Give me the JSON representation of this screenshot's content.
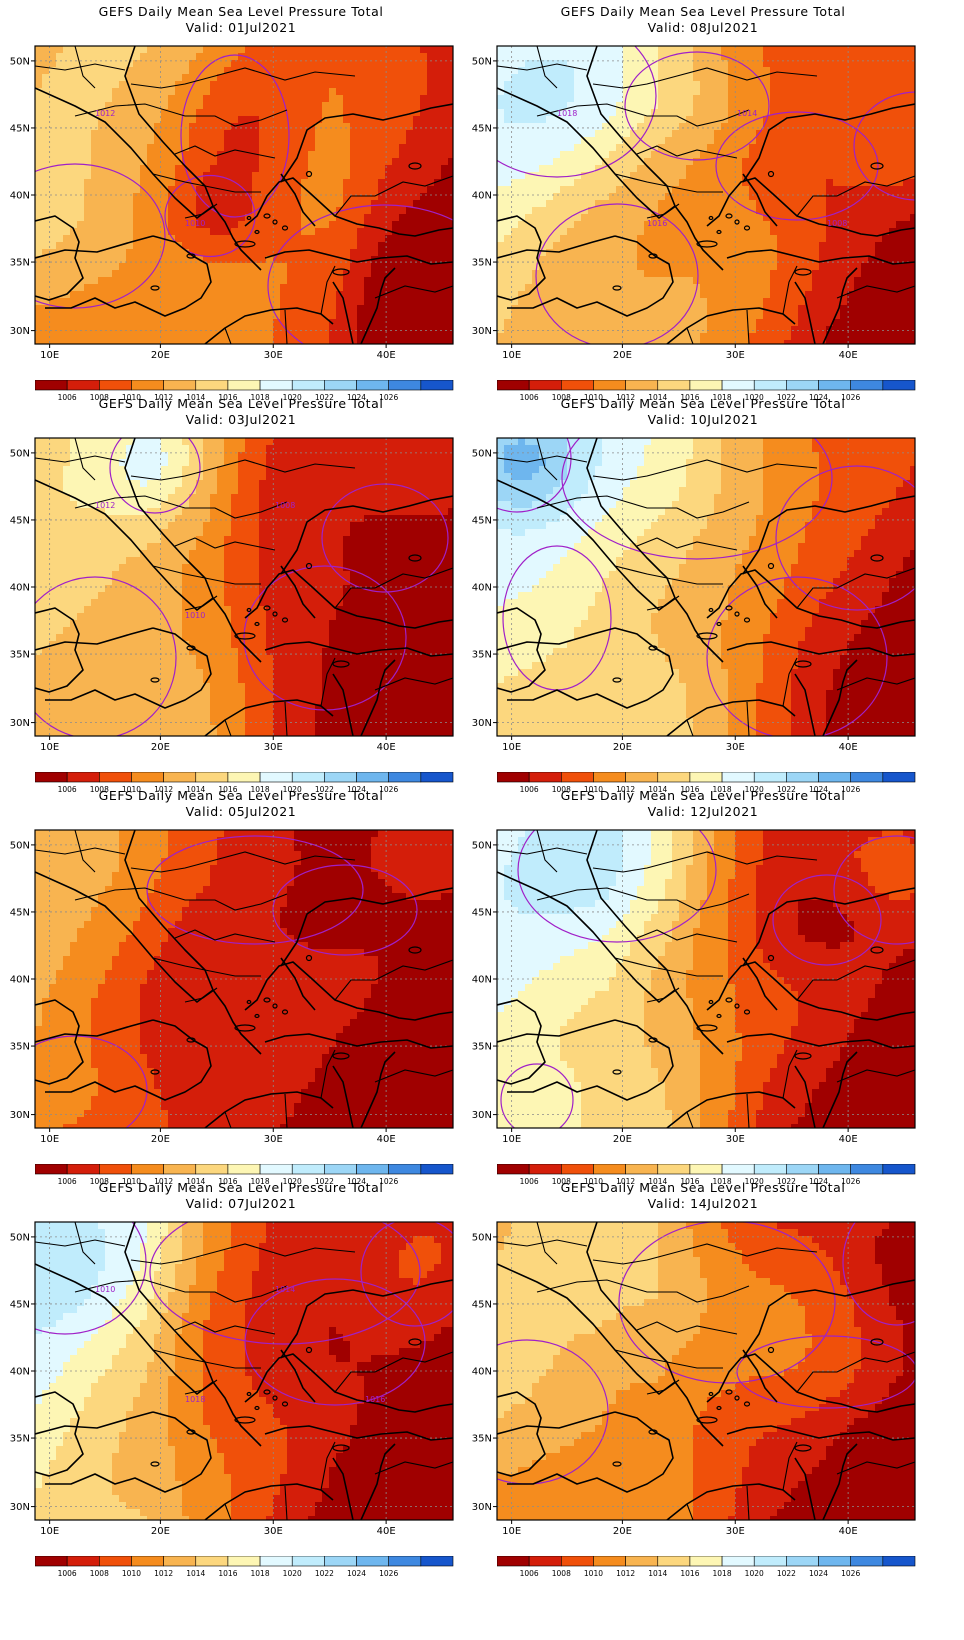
{
  "panels": [
    {
      "title": "GEFS Daily Mean Sea Level Pressure Total",
      "valid": "Valid: 01Jul2021",
      "scene": 0,
      "contour_labels": [
        "1012",
        "1010"
      ]
    },
    {
      "title": "GEFS Daily Mean Sea Level Pressure Total",
      "valid": "Valid: 08Jul2021",
      "scene": 1,
      "contour_labels": [
        "1018",
        "1016",
        "1014",
        "1008"
      ]
    },
    {
      "title": "GEFS Daily Mean Sea Level Pressure Total",
      "valid": "Valid: 03Jul2021",
      "scene": 2,
      "contour_labels": [
        "1012",
        "1010",
        "1008"
      ]
    },
    {
      "title": "GEFS Daily Mean Sea Level Pressure Total",
      "valid": "Valid: 10Jul2021",
      "scene": 3,
      "contour_labels": []
    },
    {
      "title": "GEFS Daily Mean Sea Level Pressure Total",
      "valid": "Valid: 05Jul2021",
      "scene": 4,
      "contour_labels": []
    },
    {
      "title": "GEFS Daily Mean Sea Level Pressure Total",
      "valid": "Valid: 12Jul2021",
      "scene": 5,
      "contour_labels": []
    },
    {
      "title": "GEFS Daily Mean Sea Level Pressure Total",
      "valid": "Valid: 07Jul2021",
      "scene": 6,
      "contour_labels": [
        "1010",
        "1018",
        "1014",
        "1016"
      ]
    },
    {
      "title": "GEFS Daily Mean Sea Level Pressure Total",
      "valid": "Valid: 14Jul2021",
      "scene": 7,
      "contour_labels": []
    }
  ],
  "axes": {
    "lon_ticks": [
      "10E",
      "20E",
      "30E",
      "40E"
    ],
    "lat_ticks": [
      "50N",
      "45N",
      "40N",
      "35N",
      "30N"
    ]
  },
  "colorbar": {
    "labels": [
      "1006",
      "1008",
      "1010",
      "1012",
      "1014",
      "1016",
      "1018",
      "1020",
      "1022",
      "1024",
      "1026"
    ],
    "colors": [
      "#a00000",
      "#d41e0a",
      "#f0500a",
      "#f58c1e",
      "#f8b450",
      "#fcd77e",
      "#fdf6b4",
      "#e2f9ff",
      "#c0ecfc",
      "#9cd6f6",
      "#6eb6ee",
      "#3e88e0",
      "#1656cc"
    ]
  },
  "colors": {
    "contour": "#a020c8",
    "coast": "#000000",
    "grid": "#8c8c8c"
  }
}
